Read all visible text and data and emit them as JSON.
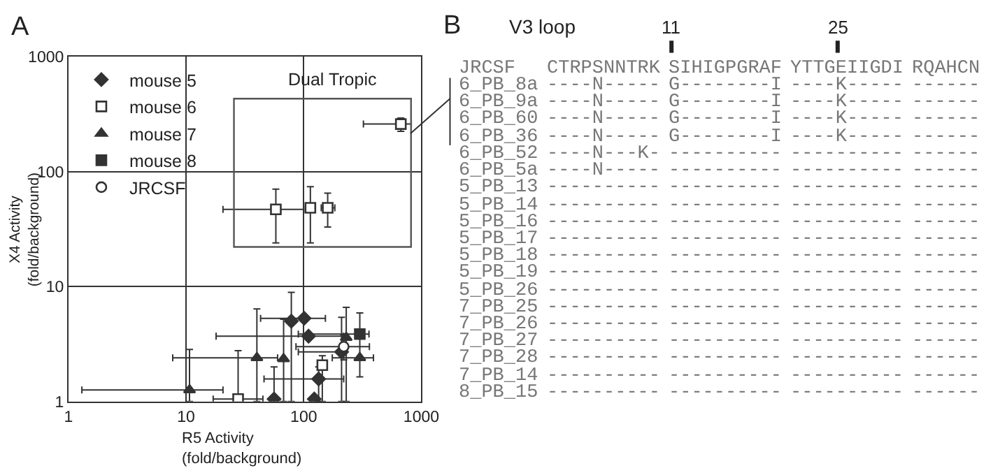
{
  "chart_data": [
    {
      "type": "scatter",
      "xlabel": "R5 Activity\n(fold/background)",
      "ylabel": "X4 Activity\n(fold/background)",
      "log": "xy",
      "xlim": [
        1,
        1000
      ],
      "ylim": [
        1,
        1000
      ],
      "xticks": [
        1,
        10,
        100,
        1000
      ],
      "yticks": [
        1,
        10,
        100,
        1000
      ],
      "grid": true,
      "legend": "top left",
      "annotations": [
        "A",
        "Dual Tropic"
      ],
      "series": [
        {
          "name": "mouse 5",
          "marker": "diamond",
          "color": "#333333",
          "x": [
            78.5,
            101,
            110,
            210,
            134,
            56,
            123
          ],
          "values": [
            5.0,
            5.3,
            3.7,
            2.7,
            1.57,
            1.05,
            1.05
          ],
          "xerrors": [
            null,
            [
              43,
              153
            ],
            [
              18,
              218
            ],
            [
              90,
              230
            ],
            [
              46,
              219
            ],
            null,
            null
          ],
          "errors": [
            [
              1,
              8.9
            ],
            null,
            null,
            [
              1,
              5.4
            ],
            [
              1,
              2.0
            ],
            [
              1.05,
              2.0
            ],
            null
          ]
        },
        {
          "name": "mouse 6",
          "marker": "square",
          "color": "#ffffff",
          "x": [
            670,
            58,
            114,
            160,
            27.7,
            144
          ],
          "values": [
            260,
            47,
            48.5,
            48.5,
            1.05,
            2.07
          ],
          "xerrors": [
            [
              322,
              822
            ],
            [
              20.6,
              100
            ],
            null,
            [
              141,
              184
            ],
            [
              17,
              45
            ],
            null
          ],
          "errors": [
            [
              225,
              293
            ],
            [
              24,
              70.6
            ],
            [
              24,
              74
            ],
            [
              33,
              65
            ],
            [
              1,
              2.77
            ],
            [
              1,
              2.5
            ]
          ]
        },
        {
          "name": "mouse 7",
          "marker": "triangle",
          "color": "#333333",
          "x": [
            10.7,
            40,
            67.5,
            230,
            300
          ],
          "values": [
            1.26,
            2.4,
            2.35,
            3.6,
            2.4
          ],
          "xerrors": [
            [
              1.3,
              20.6
            ],
            [
              7.7,
              60
            ],
            null,
            null,
            [
              175,
              392
            ]
          ],
          "errors": [
            [
              1,
              2.84
            ],
            [
              1,
              6.4
            ],
            [
              1,
              5.2
            ],
            [
              1,
              6.6
            ],
            [
              1.64,
              5.9
            ]
          ]
        },
        {
          "name": "mouse 8",
          "marker": "square",
          "color": "#333333",
          "x": [
            300
          ],
          "values": [
            3.86
          ],
          "xerrors": [
            [
              90,
              359
            ]
          ],
          "errors": [
            null
          ]
        },
        {
          "name": "JRCSF",
          "marker": "circle",
          "color": "#ffffff",
          "x": [
            219
          ],
          "values": [
            3.0
          ],
          "xerrors": [
            [
              86,
              362
            ]
          ],
          "errors": [
            [
              2.3,
              3.8
            ]
          ]
        }
      ]
    },
    {
      "type": "other",
      "title": "V3 loop",
      "annotations": [
        "B",
        "11",
        "25",
        "JRCSF CTRPSNNTRK SIHIGPGRAF YTTGEIIGDI RQAHCN",
        "6_PB_8a ----N----- G--------I ----K----- ------",
        "6_PB_9a ----N----- G--------I ----K----- ------",
        "6_PB_60 ----N----- G--------I ----K----- ------",
        "6_PB_36 ----N----- G--------I ----K----- ------",
        "6_PB_52 ----N---K- ---------- ---------- ------",
        "6_PB_5a ----N----- ---------- ---------- ------",
        "5_PB_13 ---------- ---------- ---------- ------",
        "5_PB_14 ---------- ---------- ---------- ------",
        "5_PB_16 ---------- ---------- ---------- ------",
        "5_PB_17 ---------- ---------- ---------- ------",
        "5_PB_18 ---------- ---------- ---------- ------",
        "5_PB_19 ---------- ---------- ---------- ------",
        "5_PB_26 ---------- ---------- ---------- ------",
        "7_PB_25 ---------- ---------- ---------- ------",
        "7_PB_26 ---------- ---------- ---------- ------",
        "7_PB_27 ---------- ---------- ---------- ------",
        "7_PB_28 ---------- ---------- ---------- ------",
        "7_PB_14 ---------- ---------- ---------- ------",
        "8_PB_15 ---------- ---------- ---------- ------"
      ]
    }
  ]
}
